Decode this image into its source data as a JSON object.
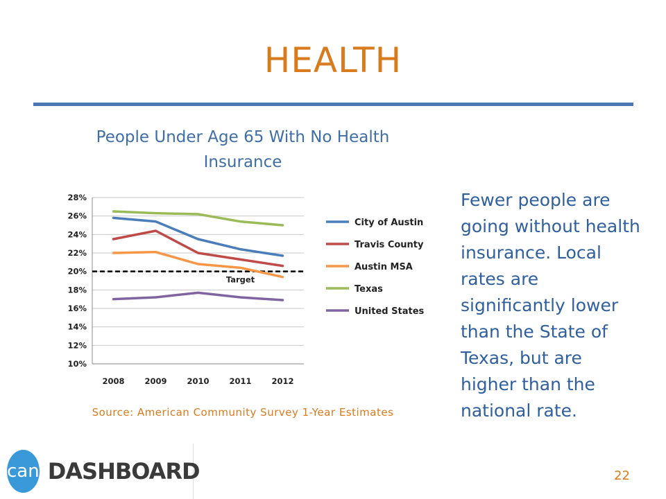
{
  "slide": {
    "title": "HEALTH",
    "page_number": "22",
    "body_text": "Fewer people are going without health insurance. Local rates are significantly lower than the State of Texas, but are higher than the national rate.",
    "source": "Source:  American Community Survey 1-Year Estimates",
    "logo": {
      "mark": "can",
      "word": "DASHBOARD"
    }
  },
  "colors": {
    "title": "#D87A1E",
    "rule": "#4A77B4",
    "chart_title": "#3F6EA6",
    "body_text": "#2F5F9E"
  },
  "chart_data": {
    "type": "line",
    "title": "People Under Age 65 With No Health Insurance",
    "categories": [
      "2008",
      "2009",
      "2010",
      "2011",
      "2012"
    ],
    "y_ticks": [
      "28%",
      "26%",
      "24%",
      "22%",
      "20%",
      "18%",
      "16%",
      "14%",
      "12%",
      "10%"
    ],
    "ylim": [
      10,
      28
    ],
    "grid": true,
    "legend_position": "right",
    "series": [
      {
        "name": "City of Austin",
        "color": "#4A7EBB",
        "values": [
          25.8,
          25.4,
          23.5,
          22.4,
          21.7
        ]
      },
      {
        "name": "Travis County",
        "color": "#BE4B48",
        "values": [
          23.5,
          24.4,
          22.0,
          21.3,
          20.6
        ]
      },
      {
        "name": "Austin MSA",
        "color": "#F79646",
        "values": [
          22.0,
          22.1,
          20.8,
          20.4,
          19.4
        ]
      },
      {
        "name": "Texas",
        "color": "#9BBB59",
        "values": [
          26.5,
          26.3,
          26.2,
          25.4,
          25.0
        ]
      },
      {
        "name": "United States",
        "color": "#8064A2",
        "values": [
          17.0,
          17.2,
          17.7,
          17.2,
          16.9
        ]
      }
    ],
    "reference_line": {
      "label": "Target",
      "value": 20.0,
      "color": "#000000"
    }
  }
}
